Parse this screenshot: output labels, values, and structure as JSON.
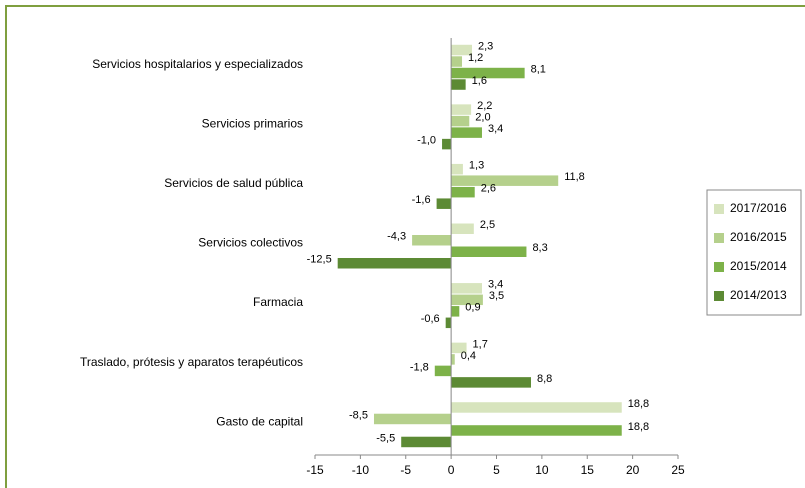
{
  "chart_data": {
    "type": "hbar",
    "categories": [
      "Servicios hospitalarios y especializados",
      "Servicios primarios",
      "Servicios de salud pública",
      "Servicios colectivos",
      "Farmacia",
      "Traslado, prótesis y aparatos terapéuticos",
      "Gasto de capital"
    ],
    "series": [
      {
        "name": "2017/2016",
        "color": "#d7e4bd",
        "values": [
          2.3,
          2.2,
          1.3,
          2.5,
          3.4,
          1.7,
          18.8
        ],
        "value_labels": [
          "2,3",
          "2,2",
          "1,3",
          "2,5",
          "3,4",
          "1,7",
          "18,8"
        ]
      },
      {
        "name": "2016/2015",
        "color": "#b5d08c",
        "values": [
          1.2,
          2.0,
          11.8,
          -4.3,
          3.5,
          0.4,
          -8.5
        ],
        "value_labels": [
          "1,2",
          "2,0",
          "11,8",
          "-4,3",
          "3,5",
          "0,4",
          "-8,5"
        ]
      },
      {
        "name": "2015/2014",
        "color": "#7db249",
        "values": [
          8.1,
          3.4,
          2.6,
          8.3,
          0.9,
          -1.8,
          18.8
        ],
        "value_labels": [
          "8,1",
          "3,4",
          "2,6",
          "8,3",
          "0,9",
          "-1,8",
          "18,8"
        ]
      },
      {
        "name": "2014/2013",
        "color": "#5c8a34",
        "values": [
          1.6,
          -1.0,
          -1.6,
          -12.5,
          -0.6,
          8.8,
          -5.5
        ],
        "value_labels": [
          "1,6",
          "-1,0",
          "-1,6",
          "-12,5",
          "-0,6",
          "8,8",
          "-5,5"
        ]
      }
    ],
    "xlim": [
      -15,
      25
    ],
    "xticks": [
      -15,
      -10,
      -5,
      0,
      5,
      10,
      15,
      20,
      25
    ],
    "legend": "right"
  }
}
